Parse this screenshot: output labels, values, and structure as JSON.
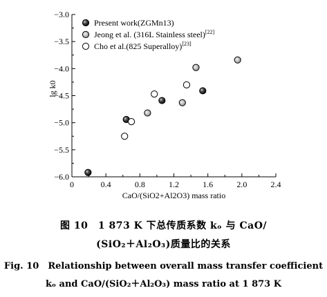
{
  "chart_data": {
    "type": "scatter",
    "xlabel": "CaO/(SiO2+Al2O3) mass ratio",
    "ylabel": "lg k0",
    "xlim": [
      0,
      2.4
    ],
    "ylim": [
      -6.0,
      -3.0
    ],
    "xticks": [
      "0",
      "0.4",
      "0.8",
      "1.2",
      "1.6",
      "2.0",
      "2.4"
    ],
    "yticks": [
      "−3.0",
      "−3.5",
      "−4.0",
      "−4.5",
      "−5.0",
      "−5.5",
      "−6.0"
    ],
    "legend_position": "top-left",
    "series": [
      {
        "name": "Present work(ZGMn13)",
        "marker": "filled",
        "points": [
          [
            0.19,
            -5.92
          ],
          [
            0.64,
            -4.94
          ],
          [
            1.06,
            -4.59
          ],
          [
            1.54,
            -4.41
          ]
        ]
      },
      {
        "name": "Jeong et al. (316L Stainless steel)",
        "reference": "[22]",
        "marker": "gray",
        "points": [
          [
            0.89,
            -4.82
          ],
          [
            1.3,
            -4.63
          ],
          [
            1.46,
            -3.98
          ],
          [
            1.95,
            -3.84
          ]
        ]
      },
      {
        "name": "Cho et al.(825 Superalloy)",
        "reference": "[23]",
        "marker": "open",
        "points": [
          [
            0.62,
            -5.25
          ],
          [
            0.7,
            -4.98
          ],
          [
            0.97,
            -4.47
          ],
          [
            1.35,
            -4.3
          ]
        ]
      }
    ]
  },
  "caption": {
    "zh_line1": "图 10　1 873 K 下总传质系数 kₒ 与 CaO/",
    "zh_line2": "(SiO₂＋Al₂O₃)质量比的关系",
    "en_line1": "Fig. 10　Relationship between overall mass transfer coefficient",
    "en_line2": "kₒ and CaO/(SiO₂＋Al₂O₃) mass ratio at 1 873 K"
  }
}
